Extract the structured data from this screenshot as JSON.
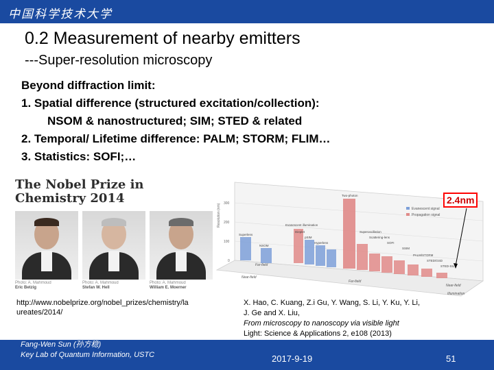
{
  "header": {
    "logo_text": "中国科学技术大学"
  },
  "slide": {
    "title": "0.2 Measurement of nearby emitters",
    "subtitle": "---Super-resolution microscopy",
    "bullets": [
      "Beyond diffraction limit:",
      "1. Spatial difference (structured excitation/collection):",
      "NSOM & nanostructured; SIM; STED & related",
      "2. Temporal/ Lifetime  difference: PALM; STORM; FLIM…",
      "3. Statistics: SOFI;…"
    ]
  },
  "nobel": {
    "title_line1": "The Nobel Prize in",
    "title_line2": "Chemistry 2014",
    "laureates": [
      {
        "photo": "Photo: A. Mahmoud",
        "name": "Eric Betzig"
      },
      {
        "photo": "Photo: A. Mahmoud",
        "name": "Stefan W. Hell"
      },
      {
        "photo": "Photo: A. Mahmoud",
        "name": "William E. Moerner"
      }
    ],
    "url": "http://www.nobelprize.org/nobel_prizes/chemistry/laureates/2014/"
  },
  "chart_data": {
    "type": "bar",
    "annotation": "2.4nm",
    "ylabel": "Resolution (nm)",
    "y_ticks": [
      "300",
      "200",
      "100",
      "0"
    ],
    "legend": [
      "Evanescent signal",
      "Propagation signal"
    ],
    "x_axis_labels": [
      "Near-field",
      "Far-field",
      "Far-field",
      "Near-field",
      "Illumination"
    ],
    "bar_labels": [
      "Superlens",
      "NSOM",
      "Evanescent illumination",
      "Dieplet",
      "pSIM",
      "Hyperlens",
      "Two-photon",
      "Superoscillation",
      "Scattering-lens",
      "SOFI",
      "SSIM",
      "PALM/STORM",
      "STED/GSD",
      "STED-SIL"
    ],
    "colors": {
      "evanescent": "#7c9fd8",
      "propagation": "#e08a88"
    }
  },
  "reference": {
    "line1": "X. Hao, C. Kuang, Z.i Gu, Y. Wang, S. Li, Y. Ku, Y. Li,",
    "line2": "J. Ge and X. Liu,",
    "line3": "From microscopy to nanoscopy via visible light",
    "line4": "Light: Science & Applications 2, e108 (2013)"
  },
  "footer": {
    "author_line1": "Fang-Wen Sun (孙方稳)",
    "author_line2": "Key Lab of Quantum Information, USTC",
    "date": "2017-9-19",
    "page": "51"
  }
}
